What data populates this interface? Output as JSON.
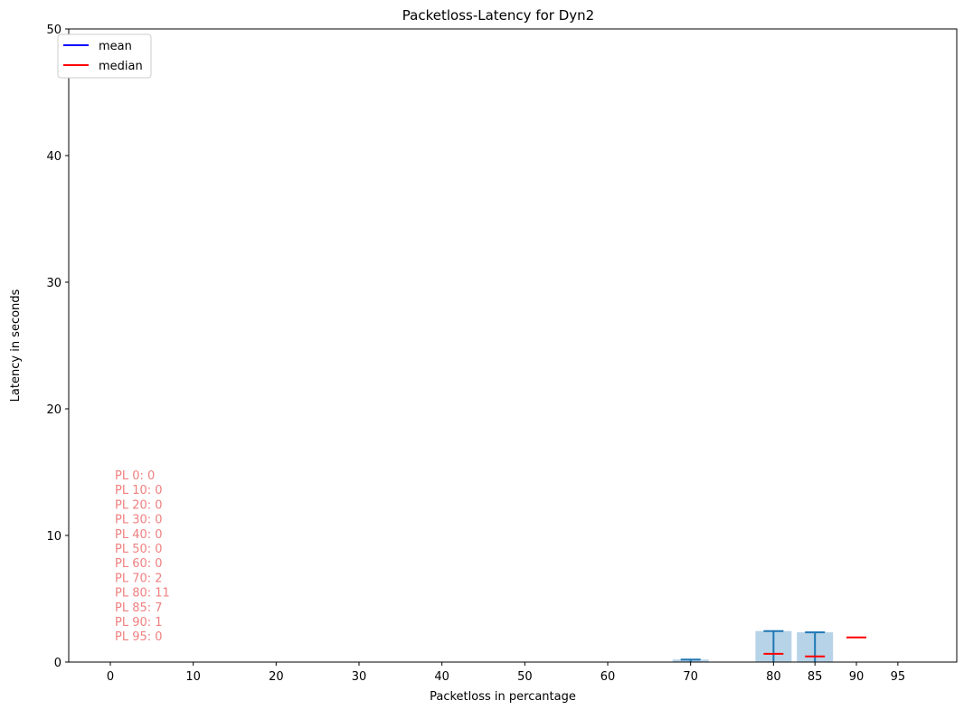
{
  "chart_data": {
    "type": "bar",
    "title": "Packetloss-Latency for Dyn2",
    "xlabel": "Packetloss in percantage",
    "ylabel": "Latency in seconds",
    "ylim": [
      0,
      50
    ],
    "yticks": [
      0,
      10,
      20,
      30,
      40,
      50
    ],
    "xticks": [
      0,
      10,
      20,
      30,
      40,
      50,
      60,
      70,
      80,
      85,
      90,
      95
    ],
    "bars": [
      {
        "x": 70,
        "mean": 0.2,
        "error_top": 0.2,
        "median": null
      },
      {
        "x": 80,
        "mean": 2.45,
        "error_top": 2.45,
        "median": 0.65
      },
      {
        "x": 85,
        "mean": 2.35,
        "error_top": 2.35,
        "median": 0.45
      },
      {
        "x": 90,
        "mean": null,
        "error_top": null,
        "median": 1.95
      }
    ],
    "legend": {
      "position": "top-left",
      "entries": [
        {
          "label": "mean",
          "color": "#0000ff"
        },
        {
          "label": "median",
          "color": "#ff0000"
        }
      ]
    },
    "counts": [
      {
        "label": "PL 0: 0"
      },
      {
        "label": "PL 10: 0"
      },
      {
        "label": "PL 20: 0"
      },
      {
        "label": "PL 30: 0"
      },
      {
        "label": "PL 40: 0"
      },
      {
        "label": "PL 50: 0"
      },
      {
        "label": "PL 60: 0"
      },
      {
        "label": "PL 70: 2"
      },
      {
        "label": "PL 80: 11"
      },
      {
        "label": "PL 85: 7"
      },
      {
        "label": "PL 90: 1"
      },
      {
        "label": "PL 95: 0"
      }
    ],
    "colors": {
      "bar": "#b7d3e8",
      "errorbar": "#1f77b4",
      "median": "#ff0000",
      "count_text": "#f08080"
    }
  }
}
